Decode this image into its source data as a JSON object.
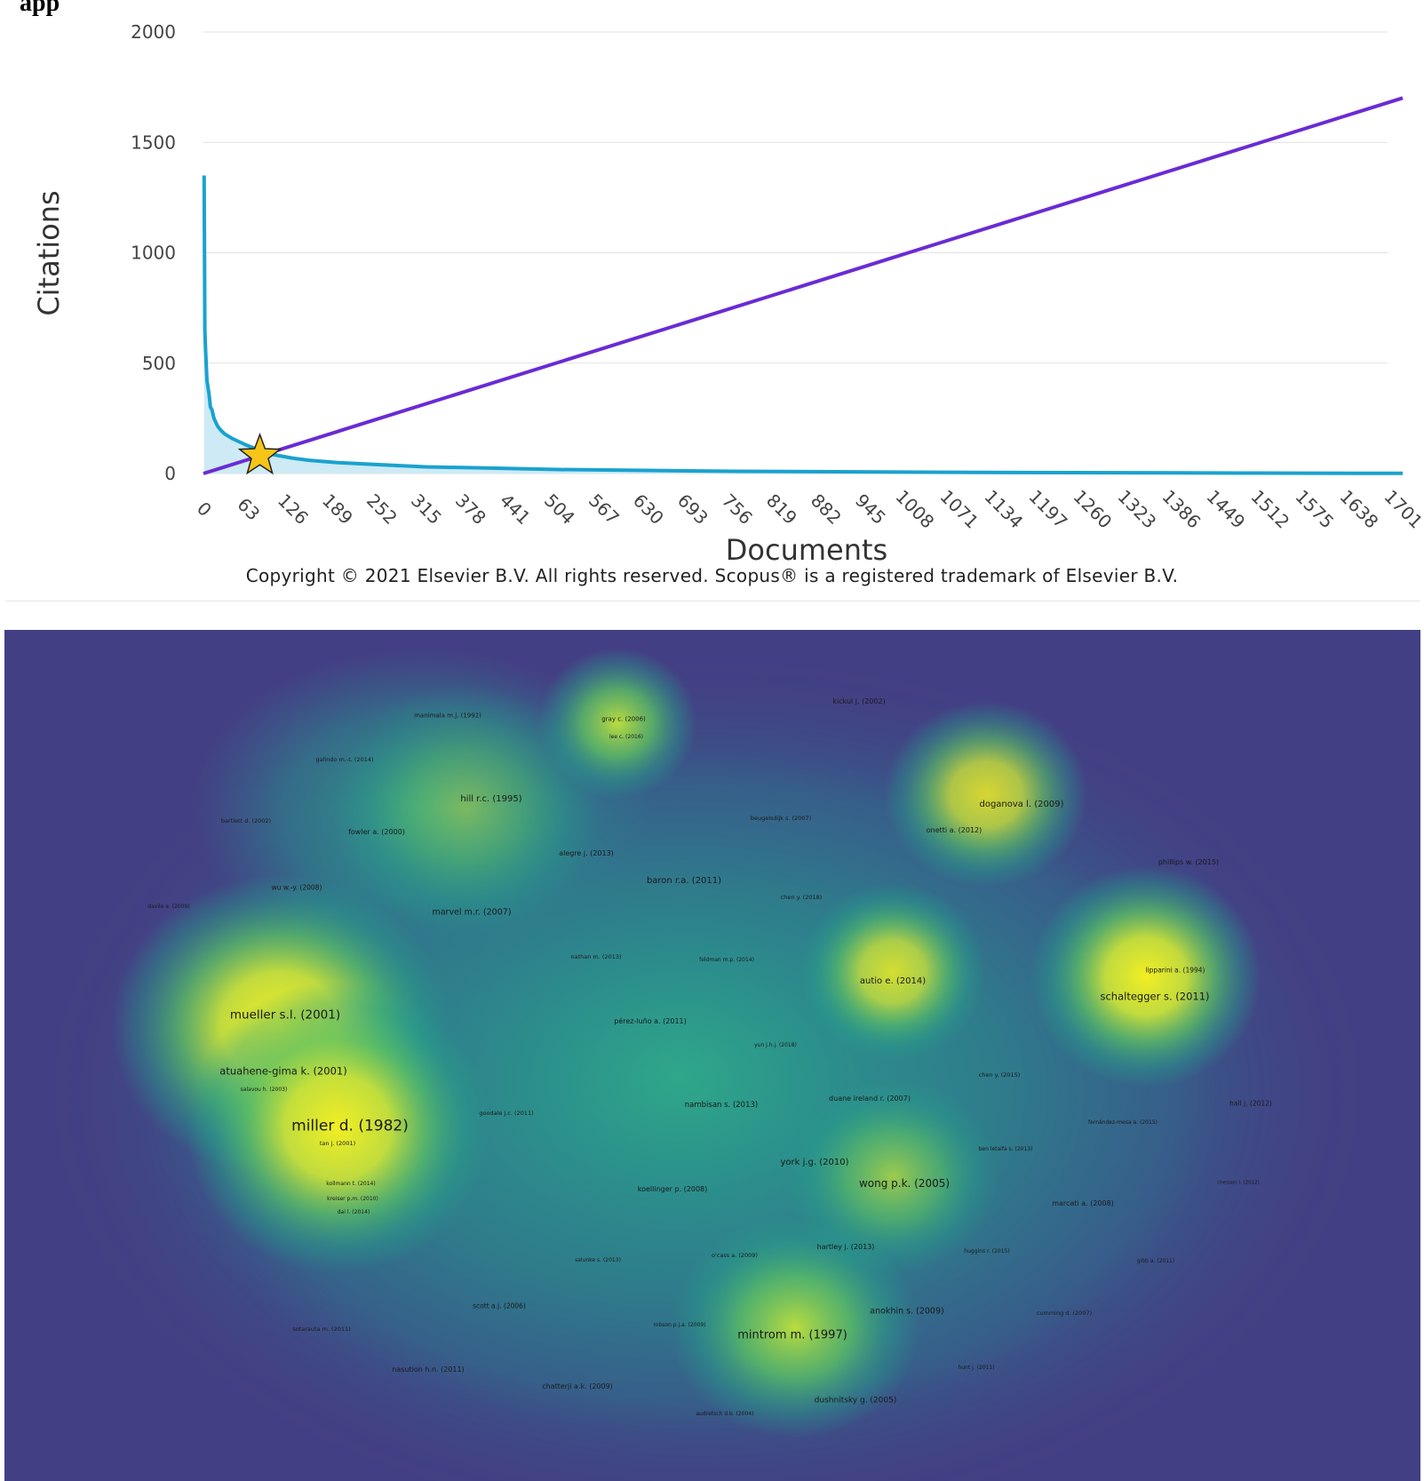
{
  "page": {
    "top_text": "app"
  },
  "chart_data": [
    {
      "type": "line",
      "xlabel": "Documents",
      "ylabel": "Citations",
      "xlim": [
        0,
        1701
      ],
      "ylim": [
        0,
        2000
      ],
      "y_ticks": [
        0,
        500,
        1000,
        1500,
        2000
      ],
      "x_ticks": [
        0,
        63,
        126,
        189,
        252,
        315,
        378,
        441,
        504,
        567,
        630,
        693,
        756,
        819,
        882,
        945,
        1008,
        1071,
        1134,
        1197,
        1260,
        1323,
        1386,
        1449,
        1512,
        1575,
        1638,
        1701
      ],
      "grid": true,
      "series": [
        {
          "color": "#1aa2cf",
          "fill": "#cdeaf5",
          "x": [
            1,
            2,
            3,
            5,
            8,
            10,
            12,
            15,
            20,
            25,
            30,
            40,
            50,
            60,
            70,
            80,
            90,
            100,
            126,
            150,
            189,
            252,
            315,
            400,
            504,
            630,
            756,
            900,
            1100,
            1386,
            1500,
            1701
          ],
          "y": [
            1350,
            650,
            560,
            420,
            360,
            300,
            290,
            250,
            215,
            195,
            180,
            160,
            145,
            130,
            118,
            105,
            95,
            85,
            70,
            60,
            50,
            40,
            30,
            25,
            18,
            14,
            10,
            8,
            5,
            3,
            2,
            1
          ]
        },
        {
          "color": "#6a2bd4",
          "x": [
            0,
            1701
          ],
          "y": [
            0,
            1701
          ]
        }
      ],
      "marker": {
        "shape": "star",
        "color": "#f5c518",
        "x": 80,
        "y": 80
      }
    },
    {
      "type": "heatmap",
      "colors": [
        "#433f84",
        "#2f7d8e",
        "#26a48a",
        "#5cc063",
        "#a8d94a",
        "#f2ee22"
      ],
      "hotspots": [
        {
          "label": "miller d. (1982)",
          "intensity": 1.0
        },
        {
          "label": "mueller s.l. (2001)",
          "intensity": 0.95
        },
        {
          "label": "schaltegger s. (2011)",
          "intensity": 0.9
        },
        {
          "label": "mintrom m. (1997)",
          "intensity": 0.8
        },
        {
          "label": "doganova l. (2009)",
          "intensity": 0.85
        },
        {
          "label": "autio e. (2014)",
          "intensity": 0.8
        },
        {
          "label": "wong p.k. (2005)",
          "intensity": 0.65
        },
        {
          "label": "gray c. (2006)",
          "intensity": 0.75
        },
        {
          "label": "hill r.c. (1995)",
          "intensity": 0.45
        }
      ],
      "points": [
        "manimala m.j. (1992)",
        "gray c. (2006)",
        "lee c. (2016)",
        "kickul j. (2002)",
        "galindo m.-t. (2014)",
        "hill r.c. (1995)",
        "doganova l. (2009)",
        "bartlett d. (2002)",
        "fowler a. (2000)",
        "beugelsdijk s. (2007)",
        "onetti a. (2012)",
        "alegre j. (2013)",
        "phillips w. (2015)",
        "wu w.-y. (2008)",
        "baron r.a. (2011)",
        "chen y. (2018)",
        "davila a. (2009)",
        "marvel m.r. (2007)",
        "nathan m. (2013)",
        "feldman m.p. (2014)",
        "lipparini a. (1994)",
        "autio e. (2014)",
        "schaltegger s. (2011)",
        "mueller s.l. (2001)",
        "pérez-luño a. (2011)",
        "yun j.h.j. (2018)",
        "atuahene-gima k. (2001)",
        "chen y. (2015)",
        "salavou h. (2003)",
        "duane ireland r. (2007)",
        "nambisan s. (2013)",
        "hall j. (2012)",
        "goodale j.c. (2011)",
        "miller d. (1982)",
        "fernández-mesa a. (2015)",
        "tan j. (2001)",
        "ben letaifa s. (2013)",
        "york j.g. (2010)",
        "wong p.k. (2005)",
        "kollmann t. (2014)",
        "chesson i. (2012)",
        "koellinger p. (2008)",
        "kreiser p.m. (2010)",
        "marcati a. (2008)",
        "dai l. (2014)",
        "hartley j. (2013)",
        "o'cass a. (2009)",
        "huggins r. (2015)",
        "salunke s. (2013)",
        "gibb a. (2011)",
        "scott a.j. (2006)",
        "anokhin s. (2009)",
        "cumming d. (2007)",
        "robson p.j.a. (2009)",
        "sotarauta m. (2011)",
        "mintrom m. (1997)",
        "nasution h.n. (2011)",
        "hunt j. (2011)",
        "chatterji a.k. (2009)",
        "dushnitsky g. (2005)",
        "audretsch d.b. (2004)"
      ]
    }
  ],
  "copyright": "Copyright © 2021 Elsevier B.V. All rights reserved. Scopus® is a registered trademark of Elsevier B.V."
}
